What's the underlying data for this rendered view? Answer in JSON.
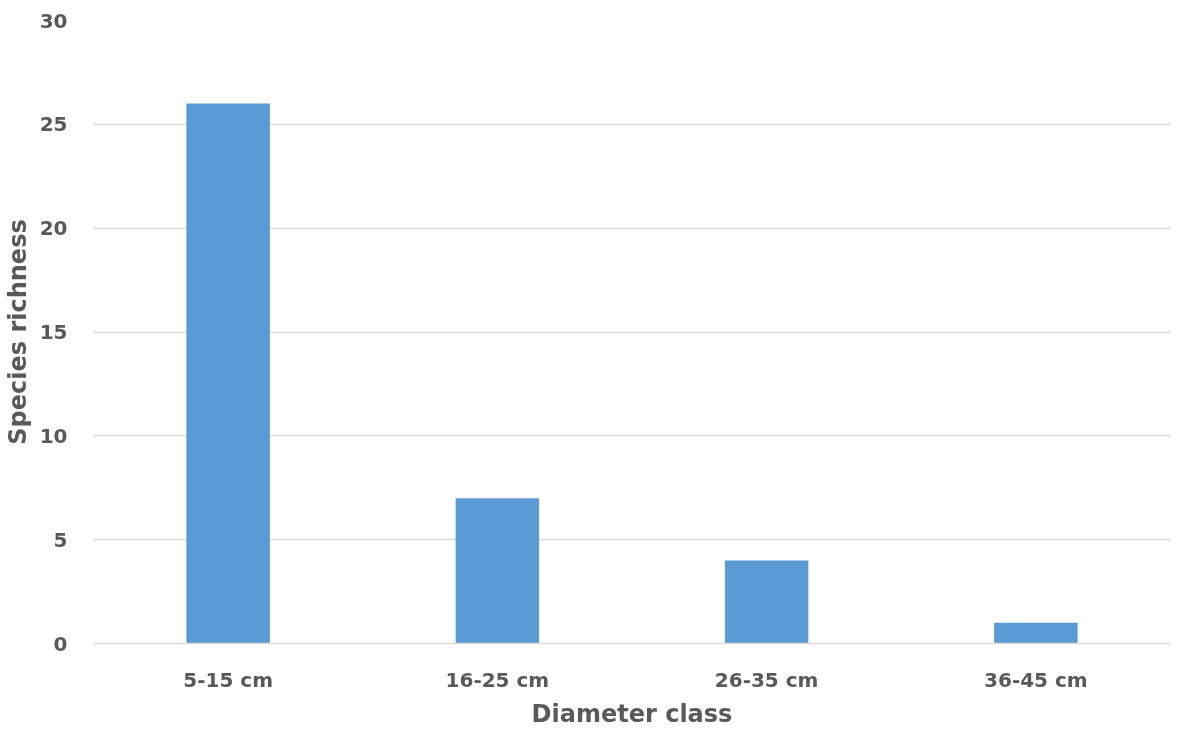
{
  "chart_data": {
    "type": "bar",
    "xlabel": "Diameter class",
    "ylabel": "Species richness",
    "categories": [
      "5-15 cm",
      "16-25 cm",
      "26-35 cm",
      "36-45 cm"
    ],
    "values": [
      26,
      7,
      4,
      1
    ],
    "color": "#5b9bd5",
    "ylim": [
      0,
      30
    ],
    "yticks": [
      0,
      5,
      10,
      15,
      20,
      25,
      30
    ],
    "grid": "y"
  }
}
